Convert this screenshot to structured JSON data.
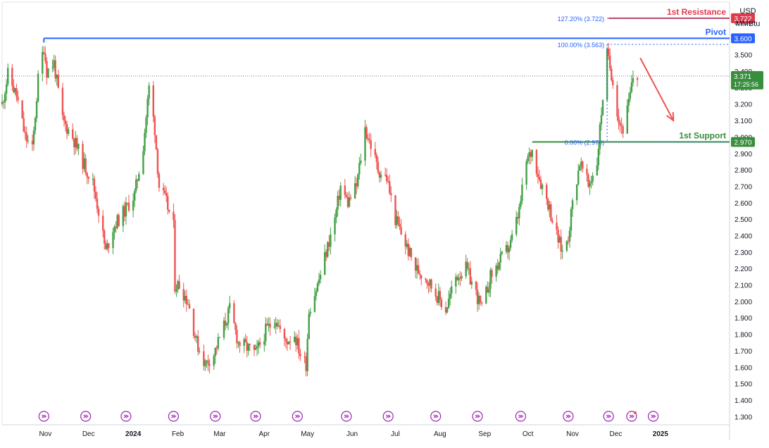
{
  "currency": "USD",
  "unit": "MMBtu",
  "chart_data": {
    "type": "candlestick",
    "ylim": [
      1.25,
      3.82
    ],
    "yticks": [
      1.3,
      1.4,
      1.5,
      1.6,
      1.7,
      1.8,
      1.9,
      2.0,
      2.1,
      2.2,
      2.3,
      2.4,
      2.5,
      2.6,
      2.7,
      2.8,
      2.9,
      3.0,
      3.1,
      3.2,
      3.3,
      3.4,
      3.5,
      3.6,
      3.7
    ],
    "ytick_labels": [
      "1.300",
      "1.400",
      "1.500",
      "1.600",
      "1.700",
      "1.800",
      "1.900",
      "2.000",
      "2.100",
      "2.200",
      "2.300",
      "2.400",
      "2.500",
      "2.600",
      "2.700",
      "2.800",
      "2.900",
      "3.000",
      "3.100",
      "3.200",
      "3.300",
      "3.400",
      "3.500",
      "3.600",
      "3.700"
    ],
    "xticks": [
      {
        "label": "Nov",
        "date": "2023-11-01"
      },
      {
        "label": "Dec",
        "date": "2023-12-01"
      },
      {
        "label": "2024",
        "date": "2024-01-01"
      },
      {
        "label": "Feb",
        "date": "2024-02-01"
      },
      {
        "label": "Mar",
        "date": "2024-03-01"
      },
      {
        "label": "Apr",
        "date": "2024-04-01"
      },
      {
        "label": "May",
        "date": "2024-05-01"
      },
      {
        "label": "Jun",
        "date": "2024-06-01"
      },
      {
        "label": "Jul",
        "date": "2024-07-01"
      },
      {
        "label": "Aug",
        "date": "2024-08-01"
      },
      {
        "label": "Sep",
        "date": "2024-09-01"
      },
      {
        "label": "Oct",
        "date": "2024-10-01"
      },
      {
        "label": "Nov",
        "date": "2024-11-01"
      },
      {
        "label": "Dec",
        "date": "2024-12-01"
      },
      {
        "label": "2025",
        "date": "2025-01-01"
      }
    ],
    "xrange": [
      "2023-10-02",
      "2025-02-18"
    ],
    "price_path": [
      {
        "date": "2023-10-02",
        "price": 3.2
      },
      {
        "date": "2023-10-06",
        "price": 3.38
      },
      {
        "date": "2023-10-12",
        "price": 3.25
      },
      {
        "date": "2023-10-18",
        "price": 3.0
      },
      {
        "date": "2023-10-23",
        "price": 2.92
      },
      {
        "date": "2023-10-27",
        "price": 3.35
      },
      {
        "date": "2023-10-31",
        "price": 3.55
      },
      {
        "date": "2023-11-02",
        "price": 3.4
      },
      {
        "date": "2023-11-07",
        "price": 3.45
      },
      {
        "date": "2023-11-13",
        "price": 3.1
      },
      {
        "date": "2023-11-20",
        "price": 3.0
      },
      {
        "date": "2023-11-27",
        "price": 2.85
      },
      {
        "date": "2023-12-04",
        "price": 2.72
      },
      {
        "date": "2023-12-08",
        "price": 2.55
      },
      {
        "date": "2023-12-13",
        "price": 2.3
      },
      {
        "date": "2023-12-18",
        "price": 2.45
      },
      {
        "date": "2023-12-26",
        "price": 2.55
      },
      {
        "date": "2024-01-02",
        "price": 2.65
      },
      {
        "date": "2024-01-08",
        "price": 2.95
      },
      {
        "date": "2024-01-12",
        "price": 3.3
      },
      {
        "date": "2024-01-16",
        "price": 3.05
      },
      {
        "date": "2024-01-19",
        "price": 2.7
      },
      {
        "date": "2024-01-24",
        "price": 2.6
      },
      {
        "date": "2024-01-29",
        "price": 2.45
      },
      {
        "date": "2024-01-30",
        "price": 2.1
      },
      {
        "date": "2024-02-02",
        "price": 2.1
      },
      {
        "date": "2024-02-08",
        "price": 2.0
      },
      {
        "date": "2024-02-14",
        "price": 1.75
      },
      {
        "date": "2024-02-20",
        "price": 1.62
      },
      {
        "date": "2024-02-26",
        "price": 1.68
      },
      {
        "date": "2024-03-04",
        "price": 1.85
      },
      {
        "date": "2024-03-08",
        "price": 1.95
      },
      {
        "date": "2024-03-14",
        "price": 1.75
      },
      {
        "date": "2024-03-20",
        "price": 1.72
      },
      {
        "date": "2024-03-26",
        "price": 1.68
      },
      {
        "date": "2024-04-02",
        "price": 1.82
      },
      {
        "date": "2024-04-09",
        "price": 1.9
      },
      {
        "date": "2024-04-15",
        "price": 1.75
      },
      {
        "date": "2024-04-22",
        "price": 1.8
      },
      {
        "date": "2024-04-26",
        "price": 1.68
      },
      {
        "date": "2024-04-30",
        "price": 1.62
      },
      {
        "date": "2024-05-02",
        "price": 1.95
      },
      {
        "date": "2024-05-08",
        "price": 2.1
      },
      {
        "date": "2024-05-14",
        "price": 2.3
      },
      {
        "date": "2024-05-20",
        "price": 2.5
      },
      {
        "date": "2024-05-24",
        "price": 2.7
      },
      {
        "date": "2024-05-29",
        "price": 2.6
      },
      {
        "date": "2024-06-04",
        "price": 2.7
      },
      {
        "date": "2024-06-10",
        "price": 3.05
      },
      {
        "date": "2024-06-14",
        "price": 2.95
      },
      {
        "date": "2024-06-19",
        "price": 2.8
      },
      {
        "date": "2024-06-25",
        "price": 2.75
      },
      {
        "date": "2024-07-01",
        "price": 2.5
      },
      {
        "date": "2024-07-08",
        "price": 2.35
      },
      {
        "date": "2024-07-15",
        "price": 2.2
      },
      {
        "date": "2024-07-22",
        "price": 2.15
      },
      {
        "date": "2024-07-29",
        "price": 2.05
      },
      {
        "date": "2024-08-05",
        "price": 1.95
      },
      {
        "date": "2024-08-12",
        "price": 2.15
      },
      {
        "date": "2024-08-19",
        "price": 2.2
      },
      {
        "date": "2024-08-26",
        "price": 2.05
      },
      {
        "date": "2024-08-30",
        "price": 1.95
      },
      {
        "date": "2024-09-05",
        "price": 2.15
      },
      {
        "date": "2024-09-12",
        "price": 2.25
      },
      {
        "date": "2024-09-19",
        "price": 2.35
      },
      {
        "date": "2024-09-25",
        "price": 2.55
      },
      {
        "date": "2024-09-30",
        "price": 2.85
      },
      {
        "date": "2024-10-04",
        "price": 2.92
      },
      {
        "date": "2024-10-09",
        "price": 2.75
      },
      {
        "date": "2024-10-15",
        "price": 2.6
      },
      {
        "date": "2024-10-21",
        "price": 2.4
      },
      {
        "date": "2024-10-25",
        "price": 2.3
      },
      {
        "date": "2024-10-29",
        "price": 2.4
      },
      {
        "date": "2024-11-01",
        "price": 2.6
      },
      {
        "date": "2024-11-06",
        "price": 2.85
      },
      {
        "date": "2024-11-12",
        "price": 2.7
      },
      {
        "date": "2024-11-18",
        "price": 2.85
      },
      {
        "date": "2024-11-22",
        "price": 3.25
      },
      {
        "date": "2024-11-25",
        "price": 3.5
      },
      {
        "date": "2024-11-29",
        "price": 3.35
      },
      {
        "date": "2024-12-03",
        "price": 3.1
      },
      {
        "date": "2024-12-06",
        "price": 3.05
      },
      {
        "date": "2024-12-10",
        "price": 3.2
      },
      {
        "date": "2024-12-13",
        "price": 3.36
      },
      {
        "date": "2024-12-16",
        "price": 3.371
      }
    ],
    "horizontal_levels": [
      {
        "label": "1st Resistance",
        "value": 3.722,
        "value_label": "3.722",
        "color": "#e03a4d",
        "style": "solid"
      },
      {
        "label": "Pivot",
        "value": 3.6,
        "value_label": "3.600",
        "color": "#2962ff",
        "style": "solid"
      },
      {
        "label": "1st Support",
        "value": 2.97,
        "value_label": "2.970",
        "color": "#388e3c",
        "style": "solid"
      }
    ],
    "fibonacci": [
      {
        "label": "127.20% (3.722)",
        "value": 3.722
      },
      {
        "label": "100.00% (3.563)",
        "value": 3.563
      },
      {
        "label": "0.00% (2.970)",
        "value": 2.97
      }
    ],
    "last_price": {
      "value": 3.371,
      "value_label": "3.371",
      "countdown": "17:25:56",
      "color": "#388e3c"
    },
    "forecast_arrow": {
      "from_date": "2024-12-18",
      "from_price": 3.48,
      "to_date": "2025-01-10",
      "to_price": 3.1,
      "color": "#ef5350"
    },
    "colors": {
      "up": "#26a69a",
      "up_light": "#43a047",
      "down": "#ef5350",
      "grid": "#f0f3fa",
      "event_icon": "#9c27b0"
    },
    "event_markers": [
      "2023-10-31",
      "2023-11-29",
      "2023-12-27",
      "2024-01-29",
      "2024-02-27",
      "2024-03-26",
      "2024-04-24",
      "2024-05-28",
      "2024-06-26",
      "2024-07-29",
      "2024-08-27",
      "2024-09-26",
      "2024-10-29",
      "2024-11-26",
      "2024-12-12",
      "2024-12-27"
    ],
    "legend": "none",
    "grid": false
  }
}
